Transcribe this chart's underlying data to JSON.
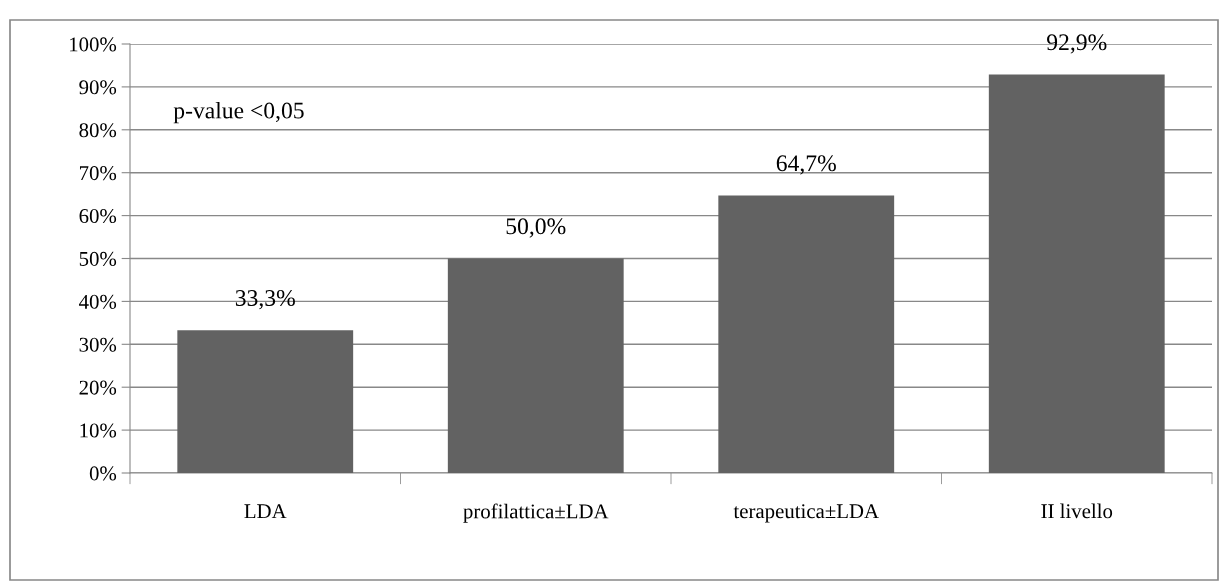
{
  "chart_data": {
    "type": "bar",
    "categories": [
      "LDA",
      "profilattica±LDA",
      "terapeutica±LDA",
      "II livello"
    ],
    "values": [
      33.3,
      50.0,
      64.7,
      92.9
    ],
    "color": "#626262",
    "value_labels": [
      "33,3%",
      "50,0%",
      "64,7%",
      "92,9%"
    ],
    "ylim": [
      0,
      100
    ],
    "yticks": [
      {
        "value": 0,
        "label": "0%"
      },
      {
        "value": 10,
        "label": "10%"
      },
      {
        "value": 20,
        "label": "20%"
      },
      {
        "value": 30,
        "label": "30%"
      },
      {
        "value": 40,
        "label": "40%"
      },
      {
        "value": 50,
        "label": "50%"
      },
      {
        "value": 60,
        "label": "60%"
      },
      {
        "value": 70,
        "label": "70%"
      },
      {
        "value": 80,
        "label": "80%"
      },
      {
        "value": 90,
        "label": "90%"
      },
      {
        "value": 100,
        "label": "100%"
      }
    ],
    "grid": "y",
    "legend": false,
    "annotations": [
      "p-value <0,05"
    ]
  }
}
